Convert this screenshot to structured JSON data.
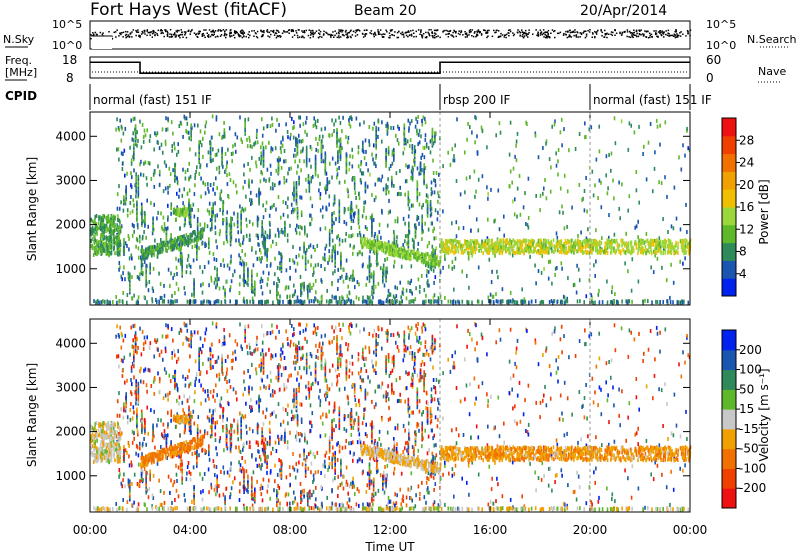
{
  "header": {
    "station": "Fort Hays West (fitACF)",
    "beam": "Beam 20",
    "date": "20/Apr/2014"
  },
  "strip_labels": {
    "nsky": "N.Sky",
    "nsearch": "N.Search",
    "freq": "Freq.",
    "freq_unit": "[MHz]",
    "nave": "Nave",
    "cpid": "CPID",
    "nsky_ticks": [
      "10^5",
      "10^0"
    ],
    "nsearch_ticks": [
      "10^5",
      "10^0"
    ],
    "freq_ticks": [
      "18",
      "8"
    ],
    "nave_ticks": [
      "60",
      "0"
    ]
  },
  "cpid_segments": [
    {
      "label": "normal (fast) 151 IF",
      "start_hour": 0,
      "end_hour": 14
    },
    {
      "label": "rbsp 200 IF",
      "start_hour": 14,
      "end_hour": 20
    },
    {
      "label": "normal (fast) 151 IF",
      "start_hour": 20,
      "end_hour": 24
    }
  ],
  "freq_steps": [
    {
      "start_hour": 0,
      "end_hour": 2,
      "freq_mhz": 15.5
    },
    {
      "start_hour": 2,
      "end_hour": 14,
      "freq_mhz": 10.3
    },
    {
      "start_hour": 14,
      "end_hour": 24,
      "freq_mhz": 15.5
    }
  ],
  "chart_data": [
    {
      "type": "heatmap",
      "title": "",
      "ylabel": "Slant Range [km]",
      "xlabel": "",
      "xlim": [
        0,
        24
      ],
      "ylim": [
        180,
        4550
      ],
      "ytick_labels": [
        "1000",
        "2000",
        "3000",
        "4000"
      ],
      "yticks": [
        1000,
        2000,
        3000,
        4000
      ],
      "colorbar": {
        "label": "Power [dB]",
        "ticks": [
          "4",
          "8",
          "12",
          "16",
          "20",
          "24",
          "28"
        ],
        "tick_values": [
          4,
          8,
          12,
          16,
          20,
          24,
          28
        ],
        "range": [
          0,
          32
        ],
        "colors": [
          "#0022ee",
          "#1a55b0",
          "#2f8a5a",
          "#5fb82a",
          "#9bd63a",
          "#f0c000",
          "#f0a000",
          "#f07000",
          "#f04000",
          "#ee1111"
        ]
      }
    },
    {
      "type": "heatmap",
      "title": "",
      "ylabel": "Slant Range [km]",
      "xlabel": "Time UT",
      "xlim": [
        0,
        24
      ],
      "ylim": [
        180,
        4550
      ],
      "ytick_labels": [
        "1000",
        "2000",
        "3000",
        "4000"
      ],
      "yticks": [
        1000,
        2000,
        3000,
        4000
      ],
      "xtick_labels": [
        "00:00",
        "04:00",
        "08:00",
        "12:00",
        "16:00",
        "20:00",
        "00:00"
      ],
      "xticks": [
        0,
        4,
        8,
        12,
        16,
        20,
        24
      ],
      "colorbar": {
        "label": "Velocity [m s⁻¹]",
        "ticks": [
          "200",
          "100",
          "50",
          "15",
          "-15",
          "-50",
          "-100",
          "-200"
        ],
        "tick_values": [
          200,
          100,
          50,
          15,
          -15,
          -50,
          -100,
          -200
        ],
        "range": [
          -250,
          250
        ],
        "colors": [
          "#ee1111",
          "#f04000",
          "#f07000",
          "#f0a000",
          "#f0c000",
          "#c8c8c8",
          "#5fb82a",
          "#2f8a5a",
          "#1a55b0",
          "#0022ee"
        ]
      }
    }
  ],
  "scatter_features": [
    {
      "name": "early-block",
      "start_hour": 0.0,
      "end_hour": 1.2,
      "range_lo": 1300,
      "range_hi": 2200,
      "power_db": 10,
      "velocity": -5
    },
    {
      "name": "arc-morning",
      "start_hour": 2.0,
      "end_hour": 4.5,
      "range_start": 1300,
      "range_end": 1800,
      "power_db": 9,
      "velocity": -60
    },
    {
      "name": "blob-0340",
      "start_hour": 3.3,
      "end_hour": 3.9,
      "range_lo": 2200,
      "range_hi": 2350,
      "power_db": 12,
      "velocity": -30
    },
    {
      "name": "arc-noon",
      "start_hour": 10.8,
      "end_hour": 14.0,
      "range_start": 1600,
      "range_end": 1150,
      "power_db": 13,
      "velocity": -20
    },
    {
      "name": "band-afternoon",
      "start_hour": 14.0,
      "end_hour": 24.0,
      "range_lo": 1350,
      "range_hi": 1650,
      "power_db": 15,
      "velocity": -40
    }
  ]
}
